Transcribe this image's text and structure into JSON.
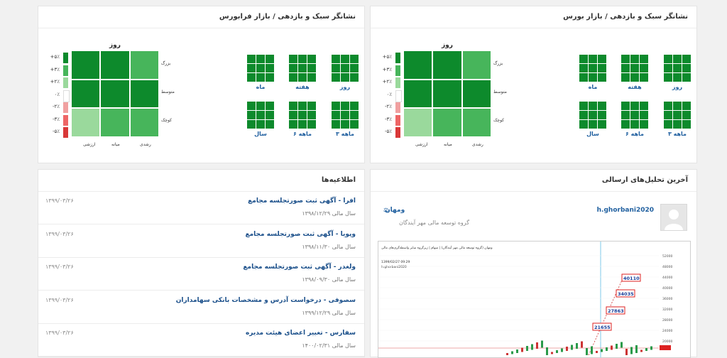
{
  "market_tse": {
    "title": "نشانگر سبک و بازدهی / بازار بورس",
    "tiles": [
      "روز",
      "هفته",
      "ماه",
      "۳ ماهه",
      "۶ ماهه",
      "سال"
    ],
    "big_title": "روز",
    "size_labels": [
      "بزرگ",
      "متوسط",
      "کوچک"
    ],
    "style_labels": [
      "رشدی",
      "میانه",
      "ارزشی"
    ],
    "legend": [
      "+۵٪",
      "+۳٪",
      "+۲٪",
      "۰٪",
      "-۲٪",
      "-۳٪",
      "-۵٪"
    ]
  },
  "market_ifb": {
    "title": "نشانگر سبک و بازدهی / بازار فرابورس",
    "tiles": [
      "روز",
      "هفته",
      "ماه",
      "۳ ماهه",
      "۶ ماهه",
      "سال"
    ],
    "big_title": "روز",
    "size_labels": [
      "بزرگ",
      "متوسط",
      "کوچک"
    ],
    "style_labels": [
      "رشدی",
      "میانه",
      "ارزشی"
    ],
    "legend": [
      "+۵٪",
      "+۳٪",
      "+۲٪",
      "۰٪",
      "-۲٪",
      "-۳٪",
      "-۵٪"
    ]
  },
  "analyses": {
    "title": "آخرین تحلیل‌های ارسالی",
    "post": {
      "username": "h.ghorbani2020",
      "symbol": "ومهان",
      "company": "گروه توسعه مالی مهر آیندگان",
      "chart_header": "ومهان (گروه توسعه مالی مهر آیندگان) | سهام | زیرگروه سایر واسطه‌گری‌های مالی",
      "chart_user": "h.ghorbani2020",
      "chart_date": "1399/02/27 09:29",
      "price_labels": [
        "21655",
        "27863",
        "34035",
        "40110"
      ],
      "y_ticks": [
        "52000",
        "48000",
        "44000",
        "40000",
        "36000",
        "32000",
        "28000",
        "24000",
        "20000"
      ]
    }
  },
  "announcements": {
    "title": "اطلاعیه‌ها",
    "items": [
      {
        "title": "افرا - آگهی ثبت صورتجلسه مجامع",
        "sub": "سال مالی ۱۳۹۸/۱۲/۲۹",
        "date": "۱۳۹۹/۰۳/۲۶"
      },
      {
        "title": "وپویا - آگهی ثبت صورتجلسه مجامع",
        "sub": "سال مالی ۱۳۹۸/۱۱/۳۰",
        "date": "۱۳۹۹/۰۳/۲۶"
      },
      {
        "title": "ولغدر - آگهی ثبت صورتجلسه مجامع",
        "sub": "سال مالی ۱۳۹۸/۰۹/۳۰",
        "date": "۱۳۹۹/۰۳/۲۶"
      },
      {
        "title": "سصوفی - درخواست آدرس و مشخصات بانکی سهامداران",
        "sub": "سال مالی ۱۳۹۹/۱۲/۲۹",
        "date": "۱۳۹۹/۰۳/۲۶"
      },
      {
        "title": "سفارس - تغییر اعضای هیئت مدیره",
        "sub": "سال مالی ۱۴۰۰/۰۲/۳۱",
        "date": "۱۳۹۹/۰۳/۲۶"
      }
    ]
  },
  "colors": {
    "dark_green": "#0d8a2c",
    "mid_green": "#47b55b",
    "light_green": "#9ad99c",
    "red": "#d93838",
    "light_red": "#f0a0a0",
    "link_blue": "#1f5f9f"
  }
}
